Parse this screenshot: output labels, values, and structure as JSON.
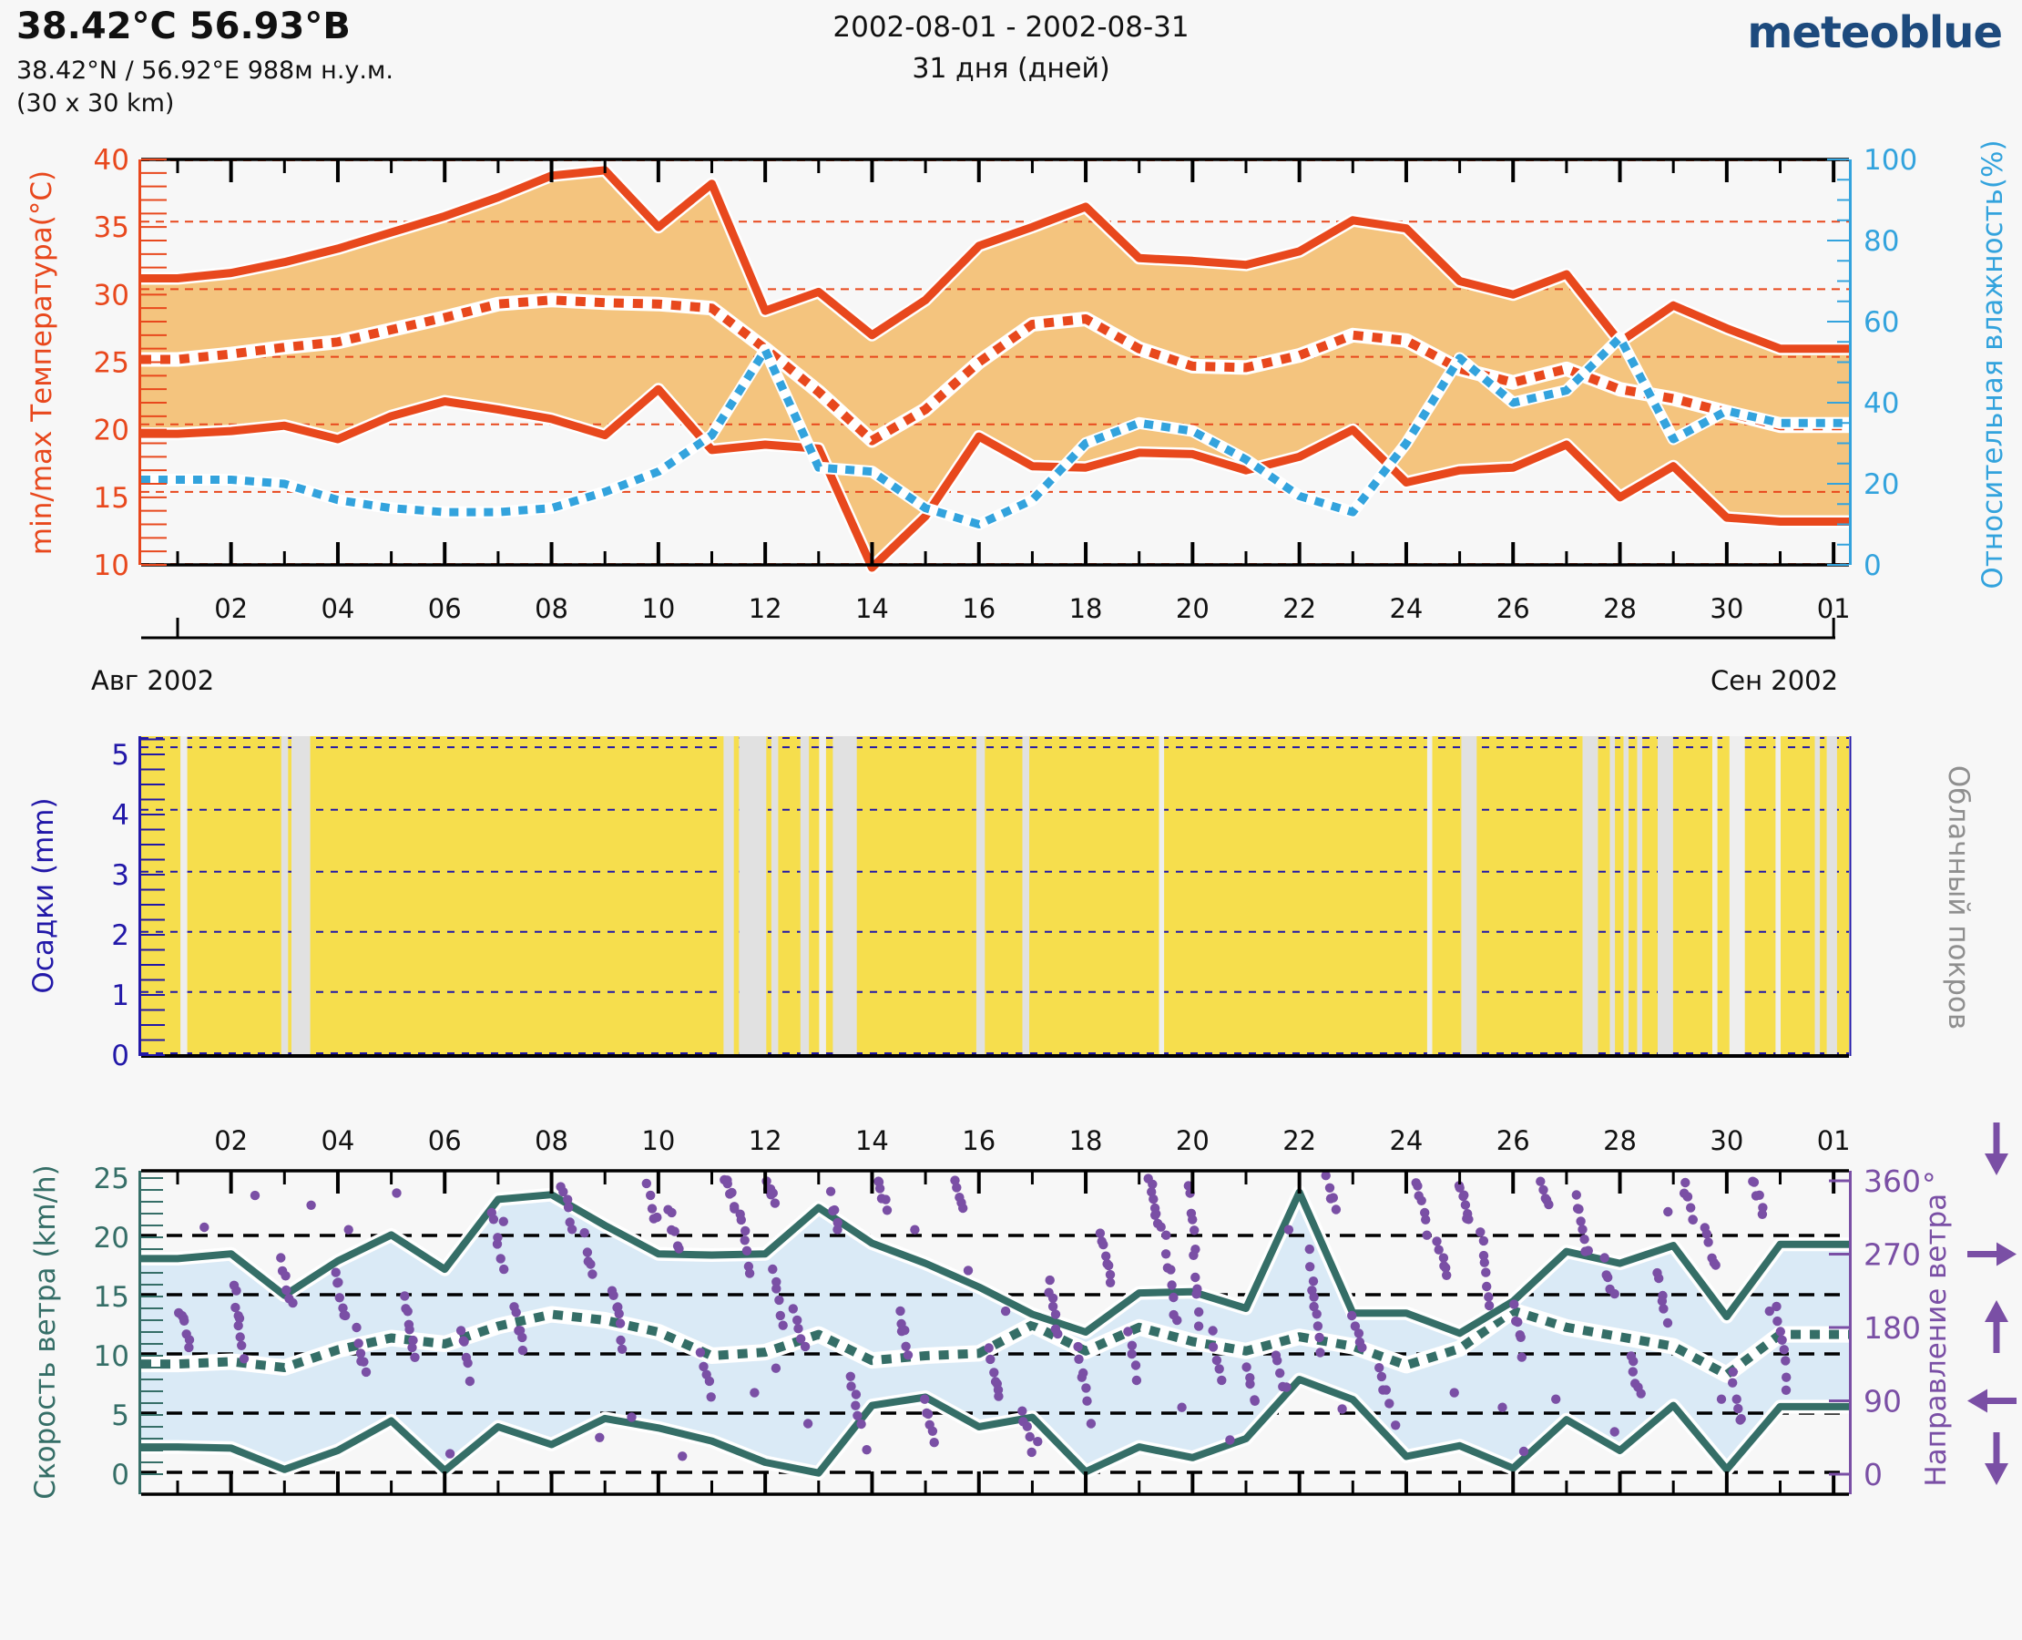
{
  "header": {
    "title": "38.42°С 56.93°В",
    "subtitle": "38.42°N / 56.92°E   988м н.у.м.",
    "area": "(30 x 30 km)",
    "period": "2002-08-01 - 2002-08-31",
    "duration": "31 дня (дней)",
    "logo": "meteoblue"
  },
  "x_axis": {
    "tick_labels": [
      "02",
      "04",
      "06",
      "08",
      "10",
      "12",
      "14",
      "16",
      "18",
      "20",
      "22",
      "24",
      "26",
      "28",
      "30",
      "01"
    ],
    "tick_days": [
      2,
      4,
      6,
      8,
      10,
      12,
      14,
      16,
      18,
      20,
      22,
      24,
      26,
      28,
      30,
      32
    ],
    "month_left": "Авг 2002",
    "month_right": "Сен 2002"
  },
  "days": [
    1,
    2,
    3,
    4,
    5,
    6,
    7,
    8,
    9,
    10,
    11,
    12,
    13,
    14,
    15,
    16,
    17,
    18,
    19,
    20,
    21,
    22,
    23,
    24,
    25,
    26,
    27,
    28,
    29,
    30,
    31
  ],
  "chart_data": [
    {
      "type": "area",
      "name": "temperature-humidity",
      "ylabel": "min/max Температура(°C)",
      "ylim": [
        10,
        40
      ],
      "y_ticks": [
        10,
        15,
        20,
        25,
        30,
        35,
        40
      ],
      "y2label": "Относительная влажность(%)",
      "y2lim": [
        0,
        100
      ],
      "y2_ticks": [
        0,
        20,
        40,
        60,
        80,
        100
      ],
      "grid_values": [
        15.4,
        20.4,
        25.4,
        30.4,
        35.4
      ],
      "series": [
        {
          "name": "t_max",
          "axis": "left",
          "style": "solid",
          "values": [
            31.2,
            31.6,
            32.4,
            33.4,
            34.6,
            35.8,
            37.2,
            38.8,
            39.2,
            35.0,
            38.2,
            28.8,
            30.2,
            27.0,
            29.6,
            33.6,
            35.0,
            36.5,
            32.7,
            32.5,
            32.2,
            33.2,
            35.5,
            34.9,
            31.0,
            30.0,
            31.5,
            26.5,
            29.2,
            27.5,
            26.0
          ]
        },
        {
          "name": "t_mean",
          "axis": "left",
          "style": "dotted",
          "values": [
            25.2,
            25.6,
            26.1,
            26.5,
            27.4,
            28.3,
            29.3,
            29.6,
            29.4,
            29.3,
            29.0,
            26.0,
            22.8,
            19.2,
            21.5,
            25.0,
            27.8,
            28.2,
            26.0,
            24.7,
            24.6,
            25.5,
            27.0,
            26.6,
            24.5,
            23.5,
            24.5,
            23.0,
            22.3,
            21.3,
            20.3
          ]
        },
        {
          "name": "t_min",
          "axis": "left",
          "style": "solid",
          "values": [
            19.7,
            19.9,
            20.3,
            19.3,
            21.0,
            22.1,
            21.5,
            20.8,
            19.6,
            23.0,
            18.5,
            18.9,
            18.6,
            9.8,
            13.6,
            19.5,
            17.3,
            17.2,
            18.3,
            18.2,
            17.0,
            18.0,
            20.0,
            16.1,
            17.0,
            17.2,
            18.9,
            15.0,
            17.3,
            13.5,
            13.2
          ]
        },
        {
          "name": "humidity",
          "axis": "right",
          "style": "dotted",
          "values": [
            21,
            21,
            20,
            16,
            14,
            13,
            13,
            14,
            18,
            23,
            32,
            53,
            24,
            23,
            14,
            10,
            16,
            30,
            35,
            33,
            26,
            17,
            13,
            30,
            51,
            40,
            43,
            56,
            31,
            38,
            35
          ]
        }
      ]
    },
    {
      "type": "bar",
      "name": "precipitation-cloud",
      "ylabel": "Осадки (mm)",
      "ylim": [
        0,
        5.3
      ],
      "y_ticks": [
        0,
        1,
        2,
        3,
        4,
        5
      ],
      "grid_values": [
        1.05,
        2.05,
        3.05,
        4.08,
        5.12
      ],
      "y2label": "Облачный покров",
      "precipitation": [
        0,
        0,
        0,
        0,
        0,
        0,
        0,
        0,
        0,
        0,
        0,
        0,
        0,
        0,
        0,
        0,
        0,
        0,
        0,
        0,
        0,
        0,
        0,
        0,
        0,
        0,
        0,
        0,
        0,
        0,
        0
      ],
      "cloud_bands": [
        [
          0.023,
          0.004,
          1
        ],
        [
          0.082,
          0.004,
          0
        ],
        [
          0.088,
          0.011,
          0
        ],
        [
          0.341,
          0.006,
          0
        ],
        [
          0.35,
          0.016,
          0
        ],
        [
          0.369,
          0.004,
          0
        ],
        [
          0.386,
          0.005,
          0
        ],
        [
          0.397,
          0.004,
          1
        ],
        [
          0.405,
          0.014,
          0
        ],
        [
          0.489,
          0.005,
          0
        ],
        [
          0.516,
          0.004,
          0
        ],
        [
          0.596,
          0.003,
          1
        ],
        [
          0.753,
          0.003,
          1
        ],
        [
          0.773,
          0.009,
          0
        ],
        [
          0.844,
          0.009,
          0
        ],
        [
          0.86,
          0.003,
          0
        ],
        [
          0.868,
          0.003,
          0
        ],
        [
          0.876,
          0.003,
          0
        ],
        [
          0.888,
          0.009,
          0
        ],
        [
          0.92,
          0.003,
          1
        ],
        [
          0.93,
          0.009,
          1
        ],
        [
          0.957,
          0.003,
          1
        ],
        [
          0.98,
          0.003,
          0
        ],
        [
          0.987,
          0.006,
          0
        ]
      ]
    },
    {
      "type": "area",
      "name": "wind",
      "ylabel": "Скорость ветра (km/h)",
      "ylim": [
        0,
        25
      ],
      "y_ticks": [
        0,
        5,
        10,
        15,
        20,
        25
      ],
      "grid_values": [
        0.15,
        5.15,
        10.15,
        15.15,
        20.15
      ],
      "y2label": "Направление ветра °",
      "y2lim": [
        0,
        360
      ],
      "y2_ticks": [
        0,
        90,
        180,
        270,
        360
      ],
      "series": [
        {
          "name": "wind_max",
          "axis": "left",
          "style": "solid",
          "values": [
            18.2,
            18.6,
            15.1,
            18.0,
            20.2,
            17.3,
            23.2,
            23.6,
            21.0,
            18.6,
            18.5,
            18.6,
            22.5,
            19.5,
            17.8,
            15.8,
            13.5,
            12.0,
            15.3,
            15.4,
            14.0,
            23.8,
            13.6,
            13.6,
            11.9,
            14.6,
            18.8,
            17.8,
            19.3,
            13.3,
            19.4
          ]
        },
        {
          "name": "wind_mean",
          "axis": "left",
          "style": "dotted",
          "values": [
            9.3,
            9.5,
            9.0,
            10.5,
            11.5,
            11.0,
            12.5,
            13.5,
            13.0,
            12.0,
            10.0,
            10.3,
            11.8,
            9.6,
            10.0,
            10.2,
            12.6,
            10.4,
            12.4,
            11.2,
            10.4,
            11.6,
            10.8,
            9.2,
            10.6,
            13.8,
            12.4,
            11.6,
            10.8,
            8.4,
            11.8
          ]
        },
        {
          "name": "wind_min",
          "axis": "left",
          "style": "solid",
          "values": [
            2.3,
            2.2,
            0.4,
            2.0,
            4.5,
            0.3,
            4.0,
            2.5,
            4.7,
            3.9,
            2.8,
            1.0,
            0.1,
            5.8,
            6.5,
            4.0,
            4.8,
            0.2,
            2.3,
            1.4,
            3.0,
            8.0,
            6.3,
            1.5,
            2.4,
            0.5,
            4.6,
            2.0,
            5.8,
            0.4,
            5.7
          ]
        }
      ],
      "direction_streaks": [
        [
          1.05,
          205,
          160,
          7
        ],
        [
          2.05,
          235,
          140,
          9
        ],
        [
          2.95,
          260,
          205,
          6
        ],
        [
          3.95,
          250,
          190,
          7
        ],
        [
          4.35,
          175,
          120,
          6
        ],
        [
          5.25,
          215,
          150,
          8
        ],
        [
          6.3,
          180,
          120,
          6
        ],
        [
          6.9,
          320,
          255,
          6
        ],
        [
          7.3,
          205,
          150,
          6
        ],
        [
          8.2,
          355,
          300,
          6
        ],
        [
          8.6,
          290,
          245,
          5
        ],
        [
          9.15,
          230,
          160,
          8
        ],
        [
          9.8,
          350,
          310,
          5
        ],
        [
          10.2,
          330,
          270,
          6
        ],
        [
          10.8,
          150,
          100,
          5
        ],
        [
          11.25,
          360,
          330,
          7
        ],
        [
          11.55,
          320,
          250,
          7
        ],
        [
          12.0,
          358,
          338,
          8
        ],
        [
          12.15,
          250,
          180,
          6
        ],
        [
          12.55,
          200,
          150,
          5
        ],
        [
          13.2,
          340,
          300,
          5
        ],
        [
          13.6,
          120,
          60,
          6
        ],
        [
          14.1,
          360,
          330,
          6
        ],
        [
          14.5,
          200,
          150,
          6
        ],
        [
          15.0,
          90,
          40,
          6
        ],
        [
          15.55,
          360,
          320,
          5
        ],
        [
          16.2,
          150,
          90,
          7
        ],
        [
          16.8,
          75,
          30,
          5
        ],
        [
          17.3,
          240,
          170,
          7
        ],
        [
          17.85,
          150,
          95,
          6
        ],
        [
          18.3,
          300,
          230,
          8
        ],
        [
          18.8,
          170,
          120,
          5
        ],
        [
          19.2,
          360,
          300,
          9
        ],
        [
          19.5,
          290,
          185,
          8
        ],
        [
          19.95,
          355,
          185,
          12
        ],
        [
          20.35,
          170,
          120,
          5
        ],
        [
          21.0,
          130,
          85,
          5
        ],
        [
          21.55,
          150,
          100,
          5
        ],
        [
          22.2,
          270,
          150,
          10
        ],
        [
          22.5,
          360,
          330,
          5
        ],
        [
          23.0,
          200,
          150,
          5
        ],
        [
          23.5,
          130,
          90,
          5
        ],
        [
          24.2,
          360,
          300,
          7
        ],
        [
          24.6,
          290,
          240,
          6
        ],
        [
          25.0,
          360,
          310,
          8
        ],
        [
          25.4,
          300,
          205,
          8
        ],
        [
          26.0,
          205,
          150,
          6
        ],
        [
          26.5,
          360,
          330,
          5
        ],
        [
          27.2,
          340,
          270,
          8
        ],
        [
          27.7,
          260,
          220,
          5
        ],
        [
          28.2,
          150,
          95,
          6
        ],
        [
          28.7,
          250,
          185,
          6
        ],
        [
          29.2,
          360,
          310,
          7
        ],
        [
          29.6,
          300,
          250,
          6
        ],
        [
          30.1,
          120,
          60,
          6
        ],
        [
          30.5,
          360,
          320,
          6
        ],
        [
          30.95,
          205,
          105,
          8
        ]
      ],
      "direction_points": [
        [
          1.5,
          303
        ],
        [
          2.45,
          342
        ],
        [
          3.5,
          330
        ],
        [
          4.2,
          300
        ],
        [
          5.1,
          345
        ],
        [
          6.1,
          25
        ],
        [
          7.1,
          310
        ],
        [
          8.9,
          45
        ],
        [
          9.5,
          70
        ],
        [
          10.45,
          22
        ],
        [
          11.8,
          100
        ],
        [
          12.2,
          130
        ],
        [
          12.8,
          62
        ],
        [
          13.9,
          30
        ],
        [
          14.8,
          300
        ],
        [
          15.8,
          250
        ],
        [
          16.5,
          200
        ],
        [
          17.1,
          40
        ],
        [
          18.1,
          62
        ],
        [
          19.8,
          82
        ],
        [
          20.7,
          42
        ],
        [
          21.8,
          300
        ],
        [
          22.8,
          80
        ],
        [
          23.8,
          60
        ],
        [
          24.9,
          100
        ],
        [
          25.8,
          82
        ],
        [
          26.2,
          28
        ],
        [
          26.8,
          92
        ],
        [
          27.9,
          52
        ],
        [
          28.9,
          322
        ],
        [
          29.9,
          92
        ],
        [
          30.8,
          200
        ]
      ]
    }
  ],
  "colors": {
    "temperature": "#e8481d",
    "band_fill": "#f4c47e",
    "humidity": "#33a3dd",
    "precip_axis": "#2218a8",
    "precip_bg": "#f6de4d",
    "cloud_band": "#e1e1e1",
    "cloud_band_light": "#eeeeee",
    "cloud_label": "#8f8f8f",
    "wind": "#356e67",
    "wind_fill": "#daeaf6",
    "wind_direction": "#7a4fa5",
    "logo": "#1d4a7d",
    "axis_black": "#000000",
    "bg": "#f7f7f7"
  }
}
